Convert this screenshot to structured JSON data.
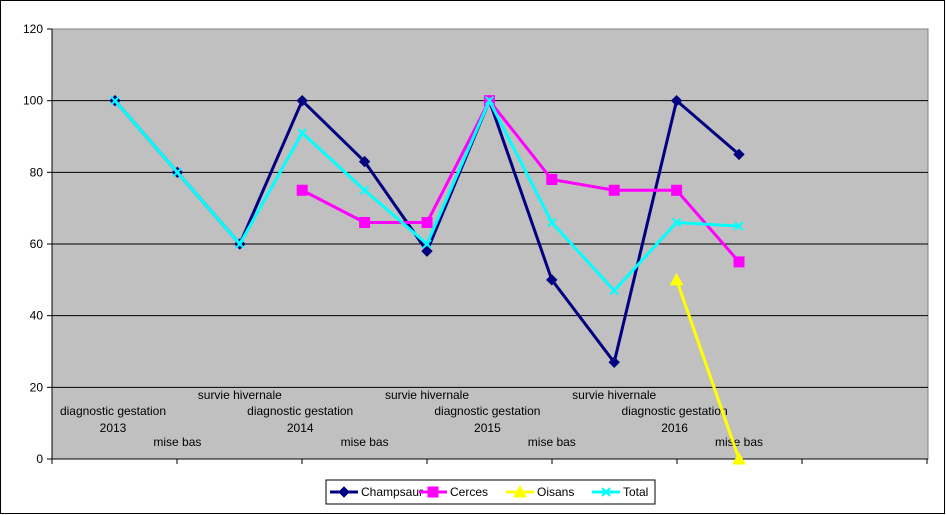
{
  "chart_data": {
    "type": "line",
    "title": "",
    "xlabel": "",
    "ylabel": "",
    "ylim": [
      0,
      120
    ],
    "yticks": [
      0,
      20,
      40,
      60,
      80,
      100,
      120
    ],
    "grid": true,
    "legend_position": "bottom",
    "categories": [
      "diagnostic gestation 2013",
      "mise bas",
      "survie hivernale",
      "diagnostic gestation 2014",
      "mise bas",
      "survie hivernale",
      "diagnostic gestation 2015",
      "mise bas",
      "survie hivernale",
      "diagnostic gestation 2016",
      "mise bas"
    ],
    "series": [
      {
        "name": "Champsaur",
        "color": "#000080",
        "marker": "diamond",
        "values": [
          100,
          80,
          60,
          100,
          83,
          58,
          100,
          50,
          27,
          100,
          85
        ]
      },
      {
        "name": "Cerces",
        "color": "#FF00FF",
        "marker": "square",
        "values": [
          null,
          null,
          null,
          75,
          66,
          66,
          100,
          78,
          75,
          75,
          55
        ]
      },
      {
        "name": "Oisans",
        "color": "#FFFF00",
        "marker": "triangle",
        "values": [
          null,
          null,
          null,
          null,
          null,
          null,
          null,
          null,
          null,
          50,
          0
        ]
      },
      {
        "name": "Total",
        "color": "#00FFFF",
        "marker": "x",
        "values": [
          100,
          80,
          60,
          91,
          75,
          60,
          100,
          66,
          47,
          66,
          65
        ]
      }
    ]
  }
}
